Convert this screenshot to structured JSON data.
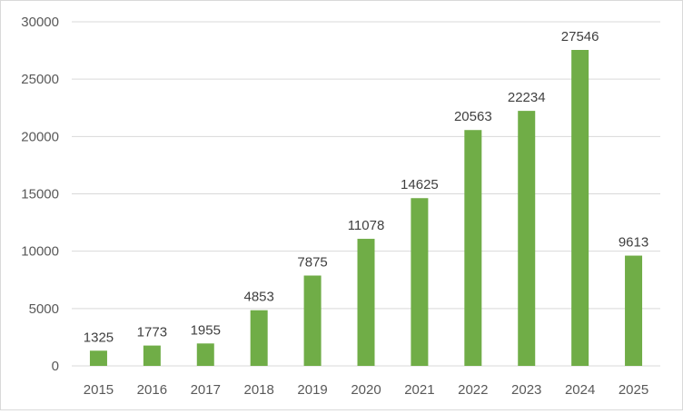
{
  "chart_data": {
    "type": "bar",
    "title": "",
    "xlabel": "",
    "ylabel": "",
    "categories": [
      "2015",
      "2016",
      "2017",
      "2018",
      "2019",
      "2020",
      "2021",
      "2022",
      "2023",
      "2024",
      "2025"
    ],
    "values": [
      1325,
      1773,
      1955,
      4853,
      7875,
      11078,
      14625,
      20563,
      22234,
      27546,
      9613
    ],
    "ylim": [
      0,
      30000
    ],
    "yticks": [
      "0",
      "5000",
      "10000",
      "15000",
      "20000",
      "25000",
      "30000"
    ],
    "grid": "horizontal",
    "legend": "none",
    "data_labels": true,
    "colors": {
      "bar": "#70ad47",
      "grid": "#d9d9d9",
      "text": "#595959",
      "label": "#404040"
    }
  }
}
